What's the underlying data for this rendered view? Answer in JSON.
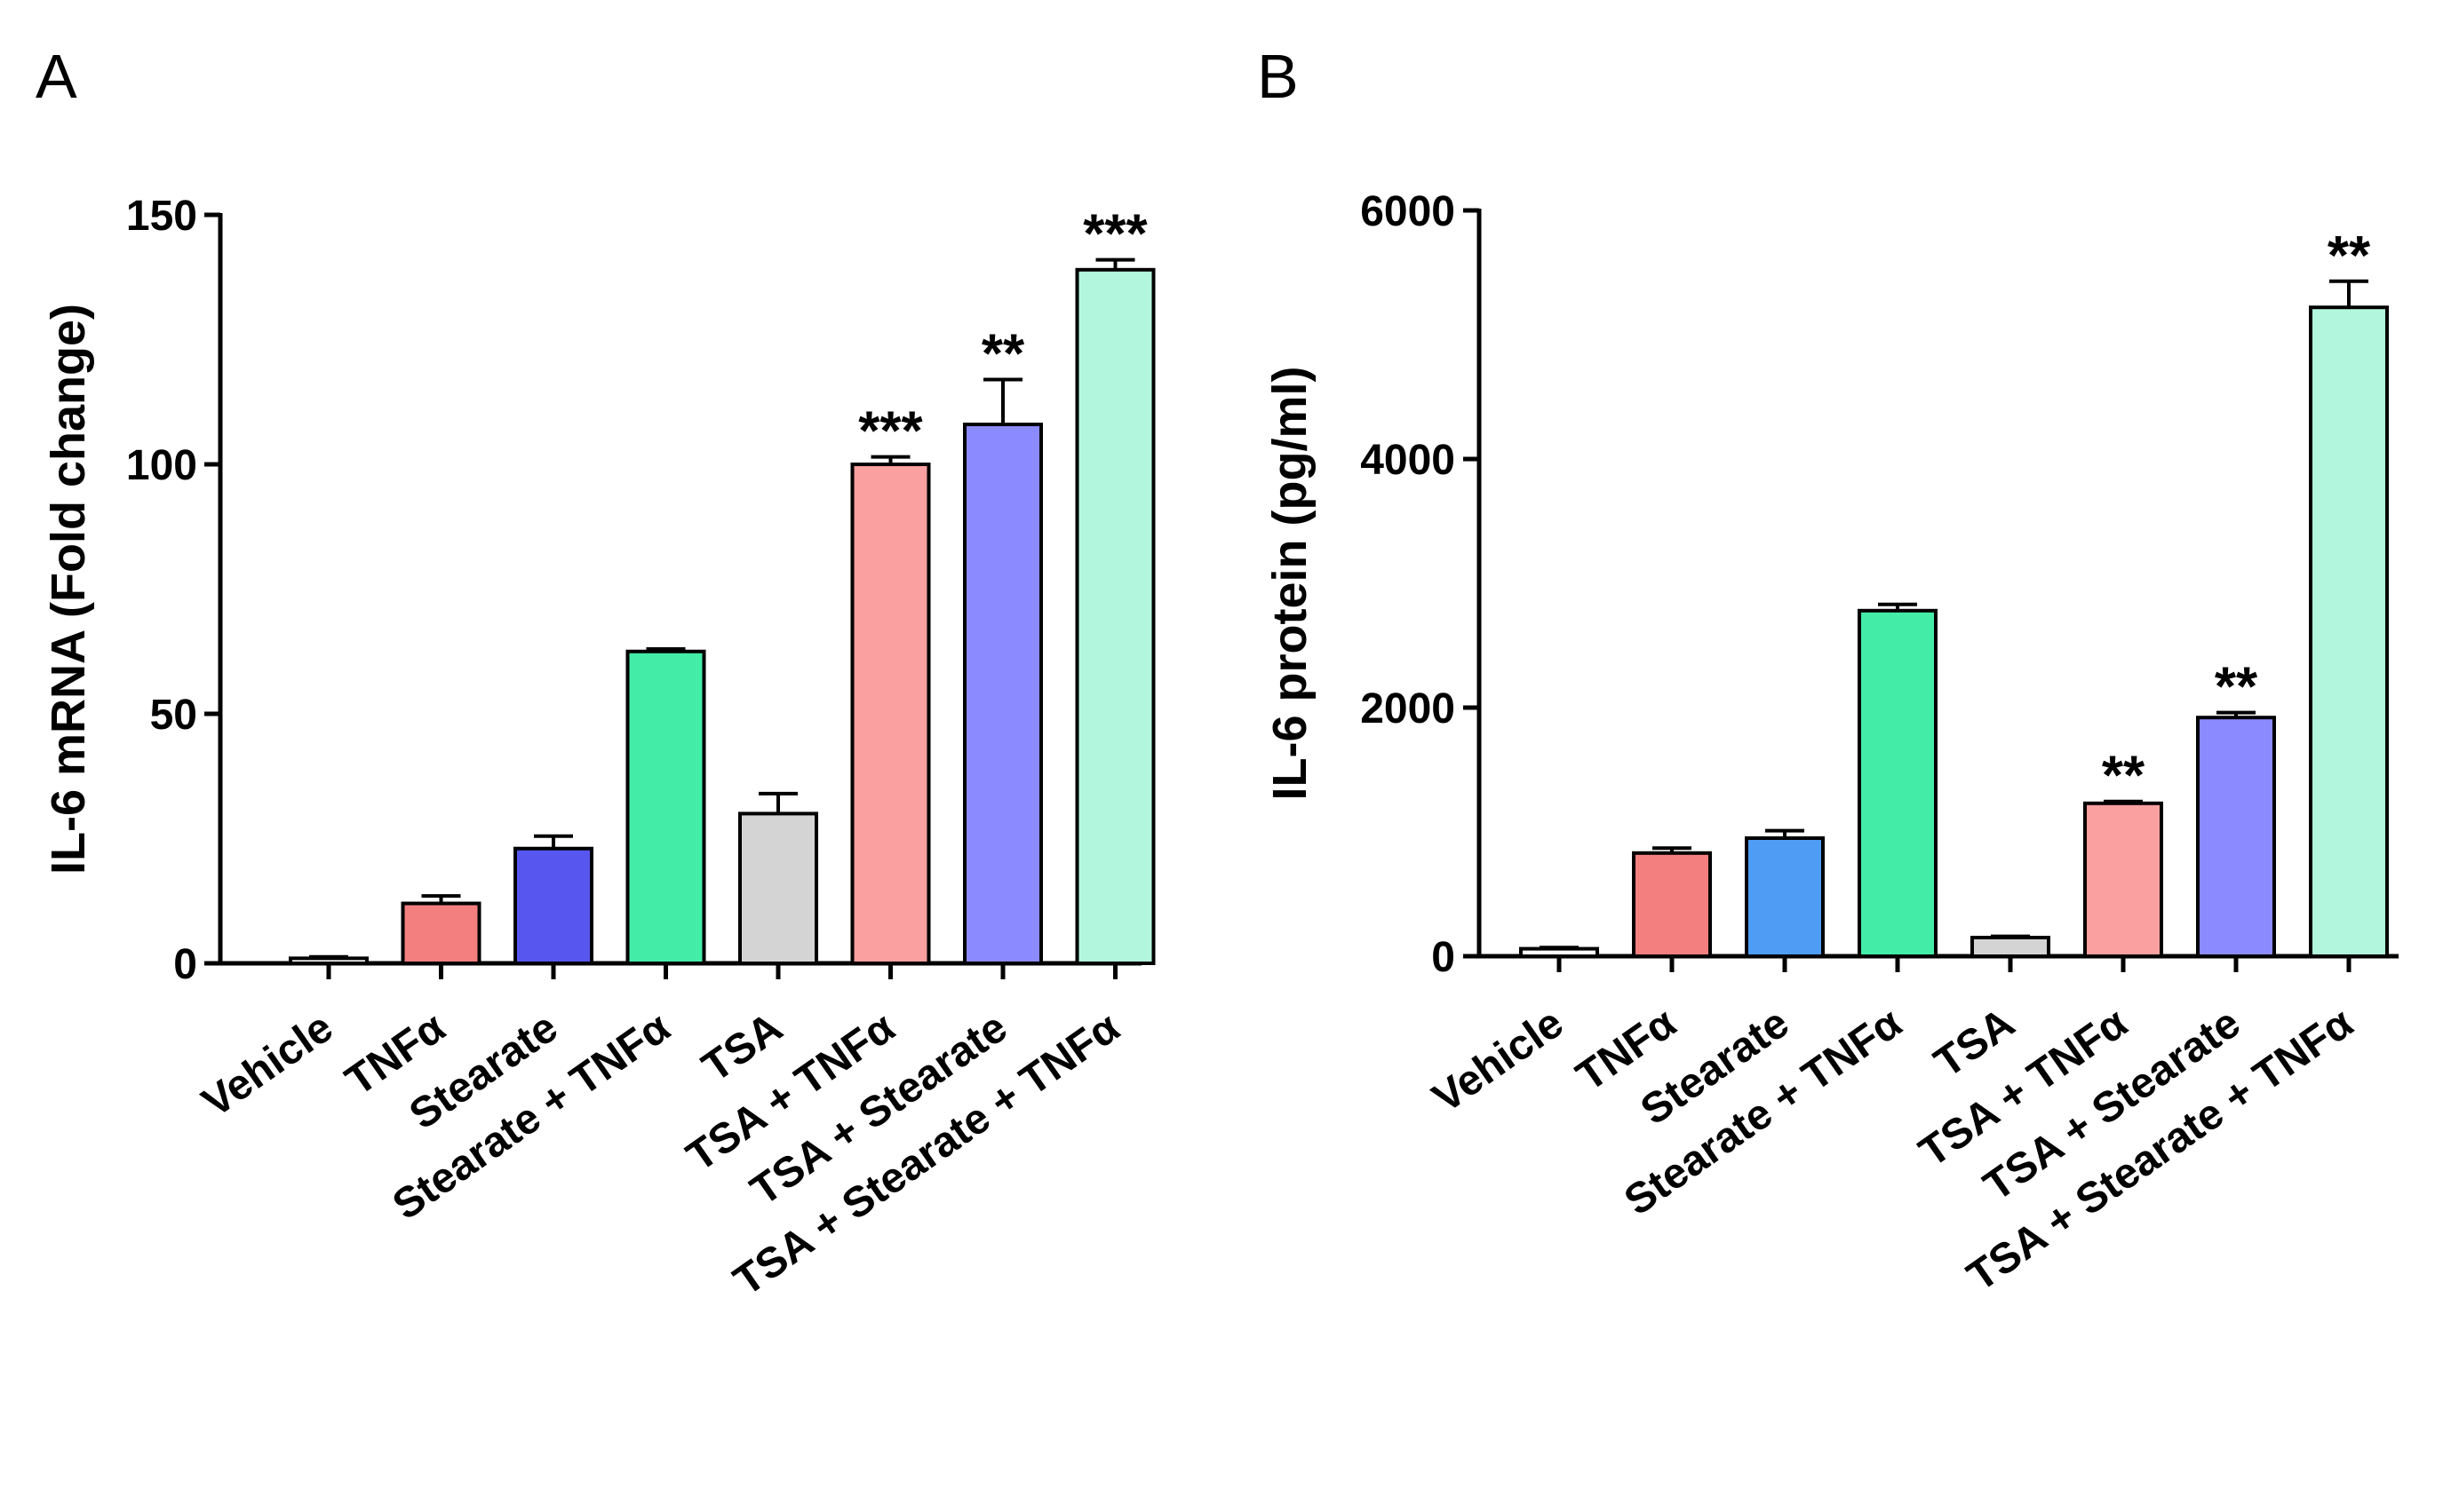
{
  "chart_data": [
    {
      "panel": "A",
      "type": "bar",
      "title": "",
      "xlabel": "",
      "ylabel": "IL-6 mRNA  (Fold change)",
      "ylim": [
        0,
        150
      ],
      "yticks": [
        0,
        50,
        100,
        150
      ],
      "grid": false,
      "categories": [
        "Vehicle",
        "TNFα",
        "Stearate",
        "Stearate  + TNFα",
        "TSA",
        "TSA + TNFα",
        "TSA + Stearate",
        "TSA + Stearate  + TNFα"
      ],
      "values": [
        1,
        12,
        23,
        62.5,
        30,
        100,
        108,
        139
      ],
      "errors": [
        0.3,
        1.5,
        2.5,
        0.5,
        4,
        1.5,
        9,
        2
      ],
      "significance": [
        "",
        "",
        "",
        "",
        "",
        "***",
        "**",
        "***"
      ],
      "colors": [
        "#ffffff",
        "#f47f7f",
        "#5757f0",
        "#43eda8",
        "#d4d4d4",
        "#fba0a0",
        "#8b8bff",
        "#b2f7dd"
      ]
    },
    {
      "panel": "B",
      "type": "bar",
      "title": "",
      "xlabel": "",
      "ylabel": "IL-6 protein (pg/ml)",
      "ylim": [
        0,
        6000
      ],
      "yticks": [
        0,
        2000,
        4000,
        6000
      ],
      "grid": false,
      "categories": [
        "Vehicle",
        "TNFα",
        "Stearate",
        "Stearate + TNFα",
        "TSA",
        "TSA + TNFα",
        "TSA + Stearate",
        "TSA + Stearate  + TNFα"
      ],
      "values": [
        60,
        830,
        950,
        2780,
        150,
        1230,
        1920,
        5220
      ],
      "errors": [
        10,
        40,
        60,
        50,
        10,
        15,
        40,
        210
      ],
      "significance": [
        "",
        "",
        "",
        "",
        "",
        "**",
        "**",
        "**"
      ],
      "colors": [
        "#ffffff",
        "#f47f7f",
        "#4f9cf5",
        "#43eda8",
        "#d4d4d4",
        "#fba0a0",
        "#8b8bff",
        "#b2f7dd"
      ]
    }
  ]
}
